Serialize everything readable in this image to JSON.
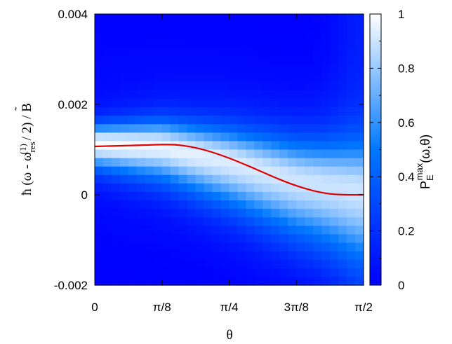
{
  "chart_data": {
    "type": "heatmap",
    "title": "",
    "xlabel": "θ",
    "ylabel": "ħ (ω - ω_res^(1) / 2) / B̃",
    "ylabel_parts": {
      "prefix": "ħ (ω - ω",
      "sub": "res",
      "sup": "(1)",
      "suffix": " / 2) / B"
    },
    "xlim": [
      0,
      1.5708
    ],
    "ylim": [
      -0.002,
      0.004
    ],
    "x_ticks": [
      {
        "value": 0,
        "label": "0"
      },
      {
        "value": 0.3927,
        "label": "π/8"
      },
      {
        "value": 0.7854,
        "label": "π/4"
      },
      {
        "value": 1.1781,
        "label": "3π/8"
      },
      {
        "value": 1.5708,
        "label": "π/2"
      }
    ],
    "y_ticks": [
      {
        "value": -0.002,
        "label": "-0.002"
      },
      {
        "value": 0,
        "label": "0"
      },
      {
        "value": 0.002,
        "label": "0.002"
      },
      {
        "value": 0.004,
        "label": "0.004"
      }
    ],
    "colorbar": {
      "label_parts": {
        "base": "P",
        "sub": "E",
        "sup": "max",
        "suffix": "(ω,θ)"
      },
      "range": [
        0,
        1
      ],
      "ticks": [
        {
          "value": 0,
          "label": "0"
        },
        {
          "value": 0.2,
          "label": "0.2"
        },
        {
          "value": 0.4,
          "label": "0.4"
        },
        {
          "value": 0.6,
          "label": "0.6"
        },
        {
          "value": 0.8,
          "label": "0.8"
        },
        {
          "value": 1,
          "label": "1"
        }
      ],
      "colors": [
        "#0000ff",
        "#0078ff",
        "#ffffff"
      ]
    },
    "heatmap": {
      "grid": [
        32,
        32
      ],
      "ridge_center": [
        {
          "x": 0.0,
          "y": 0.00113
        },
        {
          "x": 0.3927,
          "y": 0.00108
        },
        {
          "x": 0.7854,
          "y": 0.00075
        },
        {
          "x": 1.1781,
          "y": 0.00033
        },
        {
          "x": 1.5708,
          "y": 8e-05
        }
      ]
    },
    "series": [
      {
        "color": "#e00000",
        "x": [
          0,
          0.0982,
          0.1963,
          0.2945,
          0.3927,
          0.4909,
          0.589,
          0.6872,
          0.7854,
          0.8836,
          0.9817,
          1.0799,
          1.1781,
          1.2763,
          1.3744,
          1.4726,
          1.5708
        ],
        "y": [
          0.00107,
          0.00108,
          0.00109,
          0.0011,
          0.00111,
          0.0011,
          0.00104,
          0.00094,
          0.00081,
          0.00066,
          0.0005,
          0.00034,
          0.0002,
          9e-05,
          2e-05,
          0.0,
          0.0
        ]
      }
    ]
  }
}
